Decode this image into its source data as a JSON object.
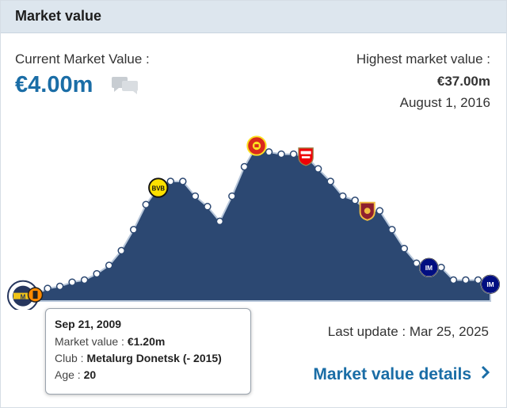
{
  "header": {
    "title": "Market value"
  },
  "current": {
    "label": "Current Market Value :",
    "value": "€4.00m"
  },
  "highest": {
    "label": "Highest market value :",
    "value": "€37.00m",
    "date": "August 1, 2016"
  },
  "tooltip": {
    "date": "Sep 21, 2009",
    "market_value_label": "Market value :",
    "market_value": "€1.20m",
    "club_label": "Club :",
    "club": "Metalurg Donetsk (- 2015)",
    "age_label": "Age :",
    "age": "20"
  },
  "last_update": "Last update : Mar 25, 2025",
  "details_link": "Market value details",
  "colors": {
    "area": "#2c4872",
    "line": "#b8c7da",
    "accent": "#1a6da6",
    "header_bg": "#dde6ee"
  },
  "chart_data": {
    "type": "area",
    "unit": "€m",
    "values": [
      1.2,
      1.5,
      3.0,
      3.5,
      4.5,
      5.0,
      6.5,
      8.5,
      12.0,
      17.0,
      23.0,
      27.0,
      28.5,
      28.5,
      25.0,
      22.5,
      19.0,
      25.0,
      32.0,
      37.0,
      35.5,
      35.0,
      35.0,
      34.5,
      31.5,
      28.5,
      25.0,
      24.0,
      21.5,
      21.5,
      17.0,
      12.5,
      9.0,
      8.0,
      8.0,
      5.0,
      5.0,
      5.0,
      4.0
    ],
    "club_markers": [
      {
        "index": 0,
        "icon": "metalurg-donetsk-crest-icon"
      },
      {
        "index": 1,
        "icon": "shakhtar-donetsk-crest-icon"
      },
      {
        "index": 11,
        "icon": "borussia-dortmund-crest-icon"
      },
      {
        "index": 19,
        "icon": "manchester-united-crest-icon"
      },
      {
        "index": 23,
        "icon": "arsenal-crest-icon"
      },
      {
        "index": 28,
        "icon": "as-roma-crest-icon"
      },
      {
        "index": 33,
        "icon": "inter-milan-crest-icon"
      },
      {
        "index": 38,
        "icon": "inter-milan-crest-icon"
      }
    ]
  }
}
